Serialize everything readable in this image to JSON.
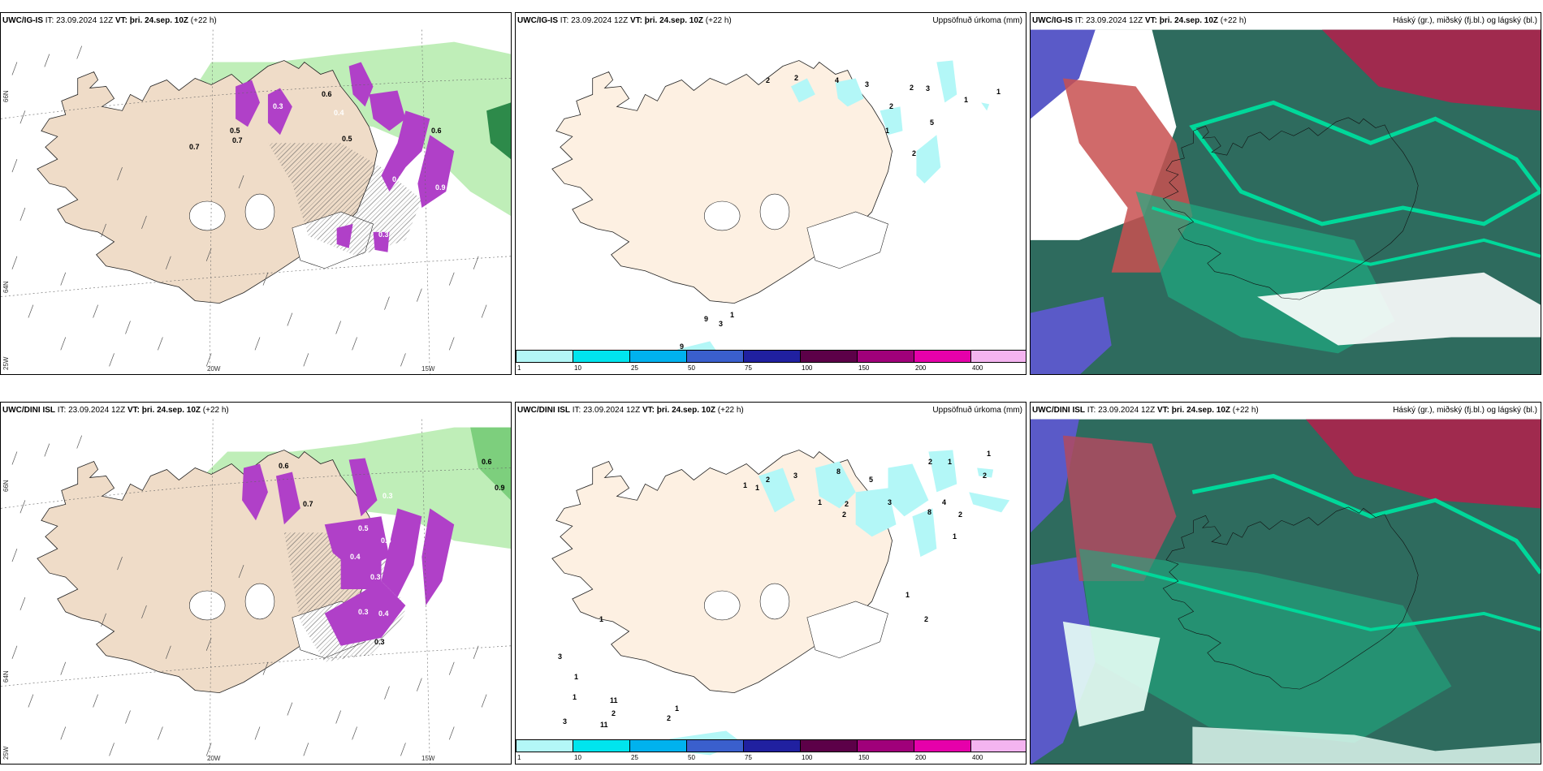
{
  "panels": [
    {
      "id": "top-left",
      "model": "UWC/IG-IS",
      "it": "IT: 23.09.2024 12Z",
      "vt_label": "VT:",
      "vt": "þri. 24.sep. 10Z",
      "lead": "(+22 h)",
      "right_title": "",
      "lat_labels": [
        "66N",
        "64N",
        "25W"
      ],
      "lon_labels": [
        "20W",
        "15W"
      ],
      "values": [
        "0.7",
        "0.5",
        "0.7",
        "0.3",
        "0.5",
        "0.6",
        "0.4",
        "0.3",
        "0.5",
        "0.6",
        "0.3",
        "0.9"
      ]
    },
    {
      "id": "top-mid",
      "model": "UWC/IG-IS",
      "it": "IT: 23.09.2024 12Z",
      "vt_label": "VT:",
      "vt": "þri. 24.sep. 10Z",
      "lead": "(+22 h)",
      "right_title": "Uppsöfnuð úrkoma (mm)",
      "values": [
        "2",
        "2",
        "4",
        "3",
        "2",
        "2",
        "3",
        "1",
        "5",
        "1",
        "2",
        "1",
        "9",
        "3",
        "1",
        "9"
      ]
    },
    {
      "id": "top-right",
      "model": "UWC/IG-IS",
      "it": "IT: 23.09.2024 12Z",
      "vt_label": "VT:",
      "vt": "þri. 24.sep. 10Z",
      "lead": "(+22 h)",
      "right_title": "Háský (gr.), miðský (fj.bl.) og lágský (bl.)"
    },
    {
      "id": "bottom-left",
      "model": "UWC/DINI ISL",
      "it": "IT: 23.09.2024 12Z",
      "vt_label": "VT:",
      "vt": "þri. 24.sep. 10Z",
      "lead": "(+22 h)",
      "right_title": "",
      "lat_labels": [
        "66N",
        "64N",
        "25W"
      ],
      "lon_labels": [
        "20W",
        "15W"
      ],
      "values": [
        "0.6",
        "0.9",
        "0.6",
        "0.7",
        "0.5",
        "0.3",
        "0.5",
        "0.4",
        "0.3",
        "0.3",
        "0.4",
        "0.3"
      ]
    },
    {
      "id": "bottom-mid",
      "model": "UWC/DINI ISL",
      "it": "IT: 23.09.2024 12Z",
      "vt_label": "VT:",
      "vt": "þri. 24.sep. 10Z",
      "lead": "(+22 h)",
      "right_title": "Uppsöfnuð úrkoma (mm)",
      "values": [
        "1",
        "1",
        "2",
        "3",
        "8",
        "5",
        "2",
        "2",
        "3",
        "1",
        "8",
        "4",
        "2",
        "1",
        "2",
        "1",
        "1",
        "2",
        "1",
        "2",
        "3",
        "1",
        "11",
        "1",
        "2",
        "3",
        "11",
        "2",
        "1",
        "1"
      ]
    },
    {
      "id": "bottom-right",
      "model": "UWC/DINI ISL",
      "it": "IT: 23.09.2024 12Z",
      "vt_label": "VT:",
      "vt": "þri. 24.sep. 10Z",
      "lead": "(+22 h)",
      "right_title": "Háský (gr.), miðský (fj.bl.) og lágský (bl.)"
    }
  ],
  "colorbar": {
    "ticks": [
      "1",
      "10",
      "25",
      "50",
      "75",
      "100",
      "150",
      "200",
      "400"
    ],
    "colors": [
      "#b3f7f7",
      "#00e5ee",
      "#00b2ee",
      "#3a5fcd",
      "#2020a0",
      "#5c0048",
      "#a0007a",
      "#e600aa",
      "#f4b4f0"
    ]
  },
  "colors": {
    "land": "#efdcc8",
    "precip_green": "#b8ecb0",
    "precip_purple": "#b040c8",
    "low_cloud": "#1faa80",
    "mid_cloud": "#2e6b5e",
    "high_cloud": "#a02a4e"
  }
}
